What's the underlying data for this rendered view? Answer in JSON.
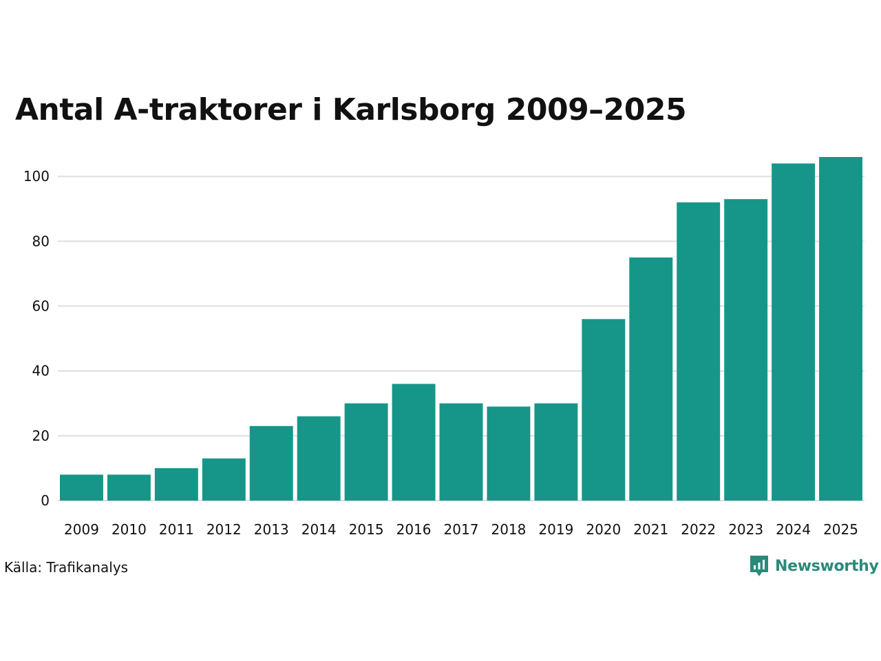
{
  "header": {
    "title": "Antal A-traktorer i Karlsborg 2009–2025"
  },
  "footer": {
    "source": "Källa: Trafikanalys",
    "brand_name": "Newsworthy",
    "brand_icon": "newsworthy-logo-icon"
  },
  "colors": {
    "bar": "#169688",
    "grid": "#dedede",
    "brand": "#2a8a7a",
    "text": "#111111"
  },
  "chart_data": {
    "type": "bar",
    "title": "Antal A-traktorer i Karlsborg 2009–2025",
    "xlabel": "",
    "ylabel": "",
    "categories": [
      "2009",
      "2010",
      "2011",
      "2012",
      "2013",
      "2014",
      "2015",
      "2016",
      "2017",
      "2018",
      "2019",
      "2020",
      "2021",
      "2022",
      "2023",
      "2024",
      "2025"
    ],
    "values": [
      8,
      8,
      10,
      13,
      23,
      26,
      30,
      36,
      30,
      29,
      30,
      56,
      75,
      92,
      93,
      104,
      106
    ],
    "ylim": [
      0,
      106
    ],
    "yticks": [
      0,
      20,
      40,
      60,
      80,
      100
    ],
    "grid": true,
    "legend": "none"
  }
}
